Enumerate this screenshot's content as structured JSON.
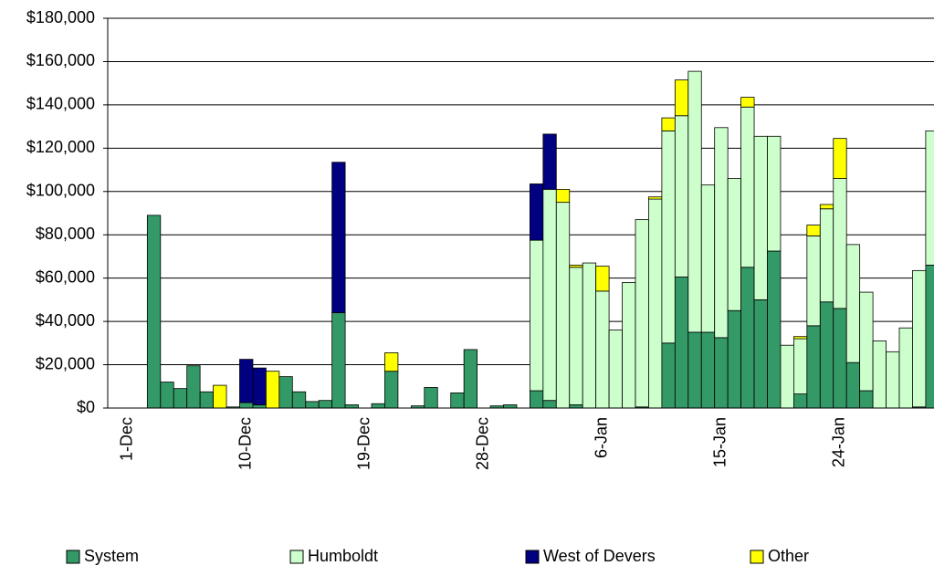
{
  "chart_data": {
    "type": "stacked_bar",
    "categories": [
      null,
      "1-Dec",
      null,
      null,
      null,
      null,
      null,
      null,
      null,
      null,
      "10-Dec",
      null,
      null,
      null,
      null,
      null,
      null,
      null,
      null,
      "19-Dec",
      null,
      null,
      null,
      null,
      null,
      null,
      null,
      null,
      "28-Dec",
      null,
      null,
      null,
      null,
      null,
      null,
      null,
      null,
      "6-Jan",
      null,
      null,
      null,
      null,
      null,
      null,
      null,
      null,
      "15-Jan",
      null,
      null,
      null,
      null,
      null,
      null,
      null,
      null,
      "24-Jan",
      null,
      null,
      null,
      null,
      null,
      null,
      null
    ],
    "series": [
      {
        "name": "System",
        "color": "#339966",
        "values": [
          0,
          0,
          0,
          89000,
          12000,
          9000,
          19500,
          7500,
          0,
          500,
          2500,
          1500,
          0,
          14500,
          7500,
          3000,
          3500,
          44000,
          1500,
          0,
          2000,
          17000,
          0,
          1000,
          9500,
          0,
          7000,
          27000,
          0,
          1000,
          1500,
          0,
          8000,
          3500,
          0,
          1500,
          0,
          0,
          0,
          0,
          500,
          0,
          30000,
          60500,
          35000,
          35000,
          32500,
          45000,
          65000,
          50000,
          72500,
          0,
          6500,
          38000,
          49000,
          46000,
          21000,
          8000,
          0,
          0,
          0,
          500,
          66000
        ]
      },
      {
        "name": "Humboldt",
        "color": "#ccffcc",
        "values": [
          0,
          0,
          0,
          0,
          0,
          0,
          0,
          0,
          0,
          0,
          0,
          0,
          0,
          0,
          0,
          0,
          0,
          0,
          0,
          0,
          0,
          0,
          0,
          0,
          0,
          0,
          0,
          0,
          0,
          0,
          0,
          0,
          69500,
          97500,
          95000,
          63500,
          67000,
          54000,
          36000,
          58000,
          86500,
          96500,
          98000,
          74500,
          120500,
          68000,
          97000,
          61000,
          74000,
          75500,
          53000,
          29000,
          25500,
          41500,
          43000,
          60000,
          54500,
          45500,
          31000,
          26000,
          37000,
          63000,
          62000
        ]
      },
      {
        "name": "West of Devers",
        "color": "#000080",
        "values": [
          0,
          0,
          0,
          0,
          0,
          0,
          0,
          0,
          0,
          0,
          20000,
          17000,
          0,
          0,
          0,
          0,
          0,
          69500,
          0,
          0,
          0,
          0,
          0,
          0,
          0,
          0,
          0,
          0,
          0,
          0,
          0,
          0,
          26000,
          25500,
          0,
          0,
          0,
          0,
          0,
          0,
          0,
          0,
          0,
          0,
          0,
          0,
          0,
          0,
          0,
          0,
          0,
          0,
          0,
          0,
          0,
          0,
          0,
          0,
          0,
          0,
          0,
          0,
          0
        ]
      },
      {
        "name": "Other",
        "color": "#ffff00",
        "values": [
          0,
          0,
          0,
          0,
          0,
          0,
          0,
          0,
          10500,
          0,
          0,
          0,
          17000,
          0,
          0,
          0,
          0,
          0,
          0,
          0,
          0,
          8500,
          0,
          0,
          0,
          0,
          0,
          0,
          0,
          0,
          0,
          0,
          0,
          0,
          6000,
          1000,
          0,
          11500,
          0,
          0,
          0,
          1000,
          6000,
          16500,
          0,
          0,
          0,
          0,
          4500,
          0,
          0,
          0,
          1000,
          5000,
          2000,
          18500,
          0,
          0,
          0,
          0,
          0,
          0,
          0
        ]
      }
    ],
    "ylim": [
      0,
      180000
    ],
    "yticks": [
      {
        "value": 0,
        "label": "$0"
      },
      {
        "value": 20000,
        "label": "$20,000"
      },
      {
        "value": 40000,
        "label": "$40,000"
      },
      {
        "value": 60000,
        "label": "$60,000"
      },
      {
        "value": 80000,
        "label": "$80,000"
      },
      {
        "value": 100000,
        "label": "$100,000"
      },
      {
        "value": 120000,
        "label": "$120,000"
      },
      {
        "value": 140000,
        "label": "$140,000"
      },
      {
        "value": 160000,
        "label": "$160,000"
      },
      {
        "value": 180000,
        "label": "$180,000"
      }
    ],
    "grid": true,
    "legend": "bottom"
  }
}
